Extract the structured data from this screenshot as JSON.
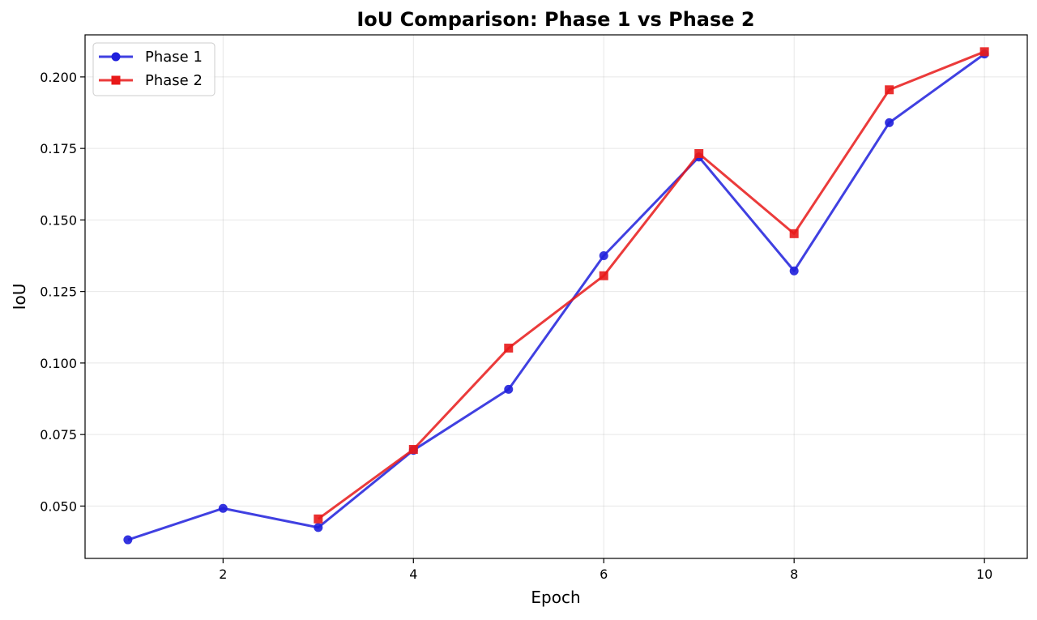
{
  "chart_data": {
    "type": "line",
    "title": "IoU Comparison: Phase 1 vs Phase 2",
    "xlabel": "Epoch",
    "ylabel": "IoU",
    "xlim": [
      0.55,
      10.45
    ],
    "ylim": [
      0.0317,
      0.2147
    ],
    "xticks": [
      2,
      4,
      6,
      8,
      10
    ],
    "xtick_labels": [
      "2",
      "4",
      "6",
      "8",
      "10"
    ],
    "yticks": [
      0.05,
      0.075,
      0.1,
      0.125,
      0.15,
      0.175,
      0.2
    ],
    "ytick_labels": [
      "0.050",
      "0.075",
      "0.100",
      "0.125",
      "0.150",
      "0.175",
      "0.200"
    ],
    "grid": true,
    "legend_position": "upper-left",
    "series": [
      {
        "name": "Phase 1",
        "color": "#1f1fdc",
        "marker": "circle",
        "x": [
          1,
          2,
          3,
          4,
          5,
          6,
          7,
          8,
          9,
          10
        ],
        "y": [
          0.0382,
          0.0492,
          0.0425,
          0.0695,
          0.0908,
          0.1375,
          0.172,
          0.1322,
          0.184,
          0.208
        ]
      },
      {
        "name": "Phase 2",
        "color": "#e81919",
        "marker": "square",
        "x": [
          3,
          4,
          5,
          6,
          7,
          8,
          9,
          10
        ],
        "y": [
          0.0455,
          0.0698,
          0.1052,
          0.1305,
          0.1732,
          0.1452,
          0.1955,
          0.2088
        ]
      }
    ]
  }
}
